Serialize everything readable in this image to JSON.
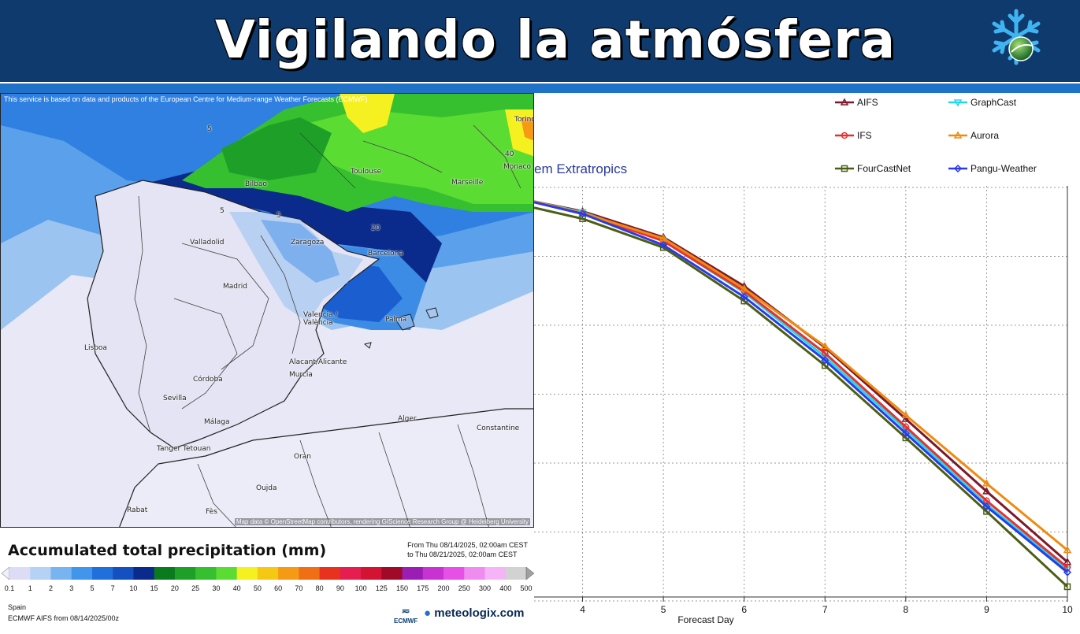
{
  "header": {
    "title": "Vigilando la atmósfera"
  },
  "map": {
    "note": "This service is based on data and products of the European Centre for Medium-range Weather Forecasts (ECMWF)",
    "attribution": "Map data © OpenStreetMap contributors, rendering GIScience Research Group @ Heidelberg University",
    "cities": [
      "Bilbao",
      "Toulouse",
      "Marseille",
      "Valladolid",
      "Zaragoza",
      "Barcelona",
      "Madrid",
      "Valencia / València",
      "Palma",
      "Lisboa",
      "Alacant/Alicante",
      "Murcia",
      "Córdoba",
      "Sevilla",
      "Málaga",
      "Alger",
      "Constantine",
      "Tanger Tetouan",
      "Oran",
      "Oujda",
      "Rabat",
      "Fès",
      "Monaco",
      "Torino"
    ],
    "contour_labels": [
      "5",
      "5",
      "5",
      "20",
      "40"
    ]
  },
  "legend": {
    "title": "Accumulated total precipitation (mm)",
    "from": "From Thu 08/14/2025, 02:00am CEST",
    "to": "to Thu 08/21/2025, 02:00am CEST",
    "levels": [
      "0.1",
      "1",
      "2",
      "3",
      "5",
      "7",
      "10",
      "15",
      "20",
      "25",
      "30",
      "40",
      "50",
      "60",
      "70",
      "80",
      "90",
      "100",
      "125",
      "150",
      "175",
      "200",
      "250",
      "300",
      "400",
      "500"
    ],
    "colors": [
      "#dcdcf5",
      "#b4d2f5",
      "#78b4f0",
      "#4196ec",
      "#2070dc",
      "#1450c0",
      "#0a2a8c",
      "#0a7a1e",
      "#1ea028",
      "#36c030",
      "#5adc32",
      "#f5f020",
      "#f5c814",
      "#f59a14",
      "#f06e14",
      "#e8321e",
      "#e61e50",
      "#d21432",
      "#a00a28",
      "#9b1eb4",
      "#c832d2",
      "#e650e6",
      "#f08cf0",
      "#f5b4f5",
      "#d2d2d2"
    ],
    "region": "Spain",
    "model": "ECMWF AIFS from  08/14/2025/00z",
    "ecmwf": "ECMWF",
    "brand": "meteologix.com"
  },
  "chart_data": {
    "type": "line",
    "title": "em Extratropics",
    "xlabel": "Forecast Day",
    "ylabel": "",
    "x": [
      3.4,
      4,
      5,
      6,
      7,
      8,
      9,
      10
    ],
    "x_ticks": [
      "4",
      "5",
      "6",
      "7",
      "8",
      "9",
      "10"
    ],
    "xlim": [
      3.4,
      10
    ],
    "ylim": [
      0,
      1
    ],
    "grid": true,
    "legend_position": "top",
    "series": [
      {
        "name": "AIFS",
        "color": "#7a1a2a",
        "marker": "triangle",
        "values": [
          0.962,
          0.938,
          0.875,
          0.756,
          0.607,
          0.433,
          0.257,
          0.085
        ]
      },
      {
        "name": "GraphCast",
        "color": "#22d8e8",
        "marker": "triangle-down",
        "values": [
          0.962,
          0.936,
          0.866,
          0.741,
          0.584,
          0.407,
          0.225,
          0.067
        ]
      },
      {
        "name": "IFS",
        "color": "#e83030",
        "marker": "circle",
        "values": [
          0.962,
          0.933,
          0.866,
          0.744,
          0.593,
          0.414,
          0.234,
          0.072
        ]
      },
      {
        "name": "Aurora",
        "color": "#f08a10",
        "marker": "triangle",
        "values": [
          0.962,
          0.934,
          0.872,
          0.75,
          0.61,
          0.442,
          0.276,
          0.114
        ]
      },
      {
        "name": "FourCastNet",
        "color": "#4b5e14",
        "marker": "square",
        "values": [
          0.947,
          0.92,
          0.85,
          0.72,
          0.563,
          0.387,
          0.208,
          0.025
        ]
      },
      {
        "name": "Pangu-Weather",
        "color": "#2a3ae8",
        "marker": "diamond",
        "values": [
          0.96,
          0.932,
          0.856,
          0.73,
          0.576,
          0.398,
          0.22,
          0.06
        ]
      }
    ]
  }
}
